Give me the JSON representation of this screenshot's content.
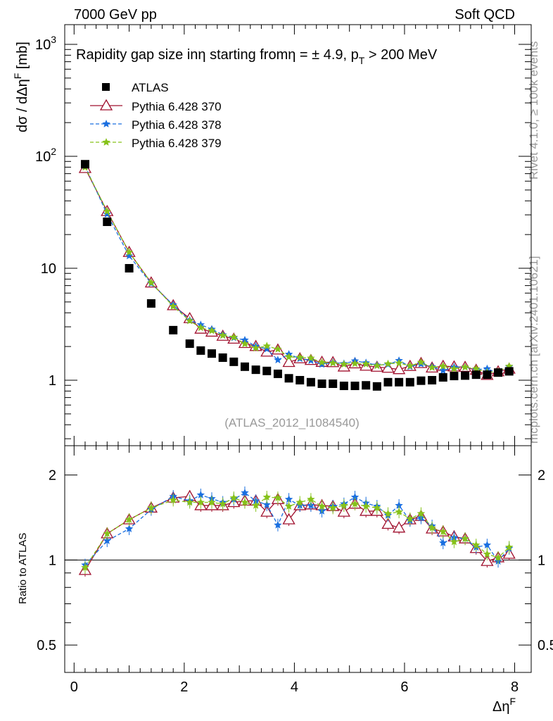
{
  "header": {
    "left": "7000 GeV pp",
    "right": "Soft QCD"
  },
  "side": {
    "rivet": "Rivet 4.1.0, ≥ 100k events",
    "mcplots": "mcplots.cern.ch [arXiv:2401.10621]"
  },
  "watermark": "(ATLAS_2012_I1084540)",
  "chart_data": {
    "type": "scatter",
    "title": "Rapidity gap size in η starting from η = ± 4.9, p_T > 200 MeV",
    "title_parts": {
      "main": "Rapidity gap size inη starting fromη = ± 4.9, p",
      "sub": "T",
      "tail": " > 200 MeV"
    },
    "ylabel": "dσ / dΔη^F [mb]",
    "ylabel_parts": {
      "main": "dσ / dΔη",
      "sup": "F",
      "tail": " [mb]"
    },
    "ratio_ylabel": "Ratio to ATLAS",
    "xlabel": "Δη^F",
    "xlabel_parts": {
      "main": "Δη",
      "sup": "F"
    },
    "xlim": [
      -0.17,
      8.3
    ],
    "ylim": [
      0.26,
      1500
    ],
    "yscale": "log",
    "ratio_ylim": [
      0.4,
      2.54
    ],
    "ratio_yscale": "log",
    "x_ticks": [
      "0",
      "2",
      "4",
      "6",
      "8"
    ],
    "y_ticks": [
      {
        "base": "1",
        "exp": ""
      },
      {
        "base": "10",
        "exp": ""
      },
      {
        "base": "10",
        "exp": "2"
      },
      {
        "base": "10",
        "exp": "3"
      }
    ],
    "ratio_ticks": [
      "0.5",
      "1",
      "2"
    ],
    "legend_position": "top-left",
    "x": [
      0.2,
      0.6,
      1.0,
      1.4,
      1.8,
      2.1,
      2.3,
      2.5,
      2.7,
      2.9,
      3.1,
      3.3,
      3.5,
      3.7,
      3.9,
      4.1,
      4.3,
      4.5,
      4.7,
      4.9,
      5.1,
      5.3,
      5.5,
      5.7,
      5.9,
      6.1,
      6.3,
      6.5,
      6.7,
      6.9,
      7.1,
      7.3,
      7.5,
      7.7,
      7.9
    ],
    "data": {
      "name": "ATLAS",
      "color": "#000000",
      "values": [
        85,
        26,
        10,
        4.85,
        2.8,
        2.12,
        1.84,
        1.73,
        1.59,
        1.46,
        1.32,
        1.24,
        1.21,
        1.14,
        1.04,
        1.0,
        0.96,
        0.93,
        0.93,
        0.89,
        0.89,
        0.9,
        0.88,
        0.96,
        0.96,
        0.96,
        0.99,
        1.0,
        1.06,
        1.09,
        1.1,
        1.12,
        1.12,
        1.17,
        1.2
      ]
    },
    "series": [
      {
        "name": "Pythia 6.428 370",
        "color": "#a0102e",
        "marker": "triangle",
        "dashed": false,
        "ratio": [
          0.92,
          1.24,
          1.39,
          1.53,
          1.66,
          1.68,
          1.56,
          1.56,
          1.56,
          1.6,
          1.62,
          1.62,
          1.48,
          1.64,
          1.39,
          1.56,
          1.57,
          1.56,
          1.55,
          1.48,
          1.58,
          1.49,
          1.49,
          1.34,
          1.3,
          1.39,
          1.43,
          1.29,
          1.26,
          1.21,
          1.19,
          1.1,
          0.99,
          1.02,
          1.05
        ]
      },
      {
        "name": "Pythia 6.428 378",
        "color": "#1a6fe0",
        "marker": "star",
        "dashed": true,
        "ratio": [
          0.96,
          1.17,
          1.29,
          1.51,
          1.68,
          1.62,
          1.7,
          1.65,
          1.6,
          1.64,
          1.73,
          1.62,
          1.57,
          1.33,
          1.64,
          1.56,
          1.56,
          1.49,
          1.55,
          1.58,
          1.67,
          1.59,
          1.55,
          1.44,
          1.56,
          1.38,
          1.41,
          1.32,
          1.15,
          1.2,
          1.19,
          1.11,
          1.13,
          0.99,
          1.1
        ]
      },
      {
        "name": "Pythia 6.428 379",
        "color": "#86c21a",
        "marker": "star",
        "dashed": true,
        "ratio": [
          0.94,
          1.24,
          1.39,
          1.53,
          1.63,
          1.6,
          1.6,
          1.6,
          1.58,
          1.66,
          1.6,
          1.56,
          1.67,
          1.66,
          1.55,
          1.6,
          1.64,
          1.55,
          1.53,
          1.56,
          1.58,
          1.55,
          1.53,
          1.46,
          1.48,
          1.4,
          1.46,
          1.3,
          1.26,
          1.16,
          1.19,
          1.13,
          1.05,
          1.02,
          1.11
        ]
      }
    ]
  }
}
